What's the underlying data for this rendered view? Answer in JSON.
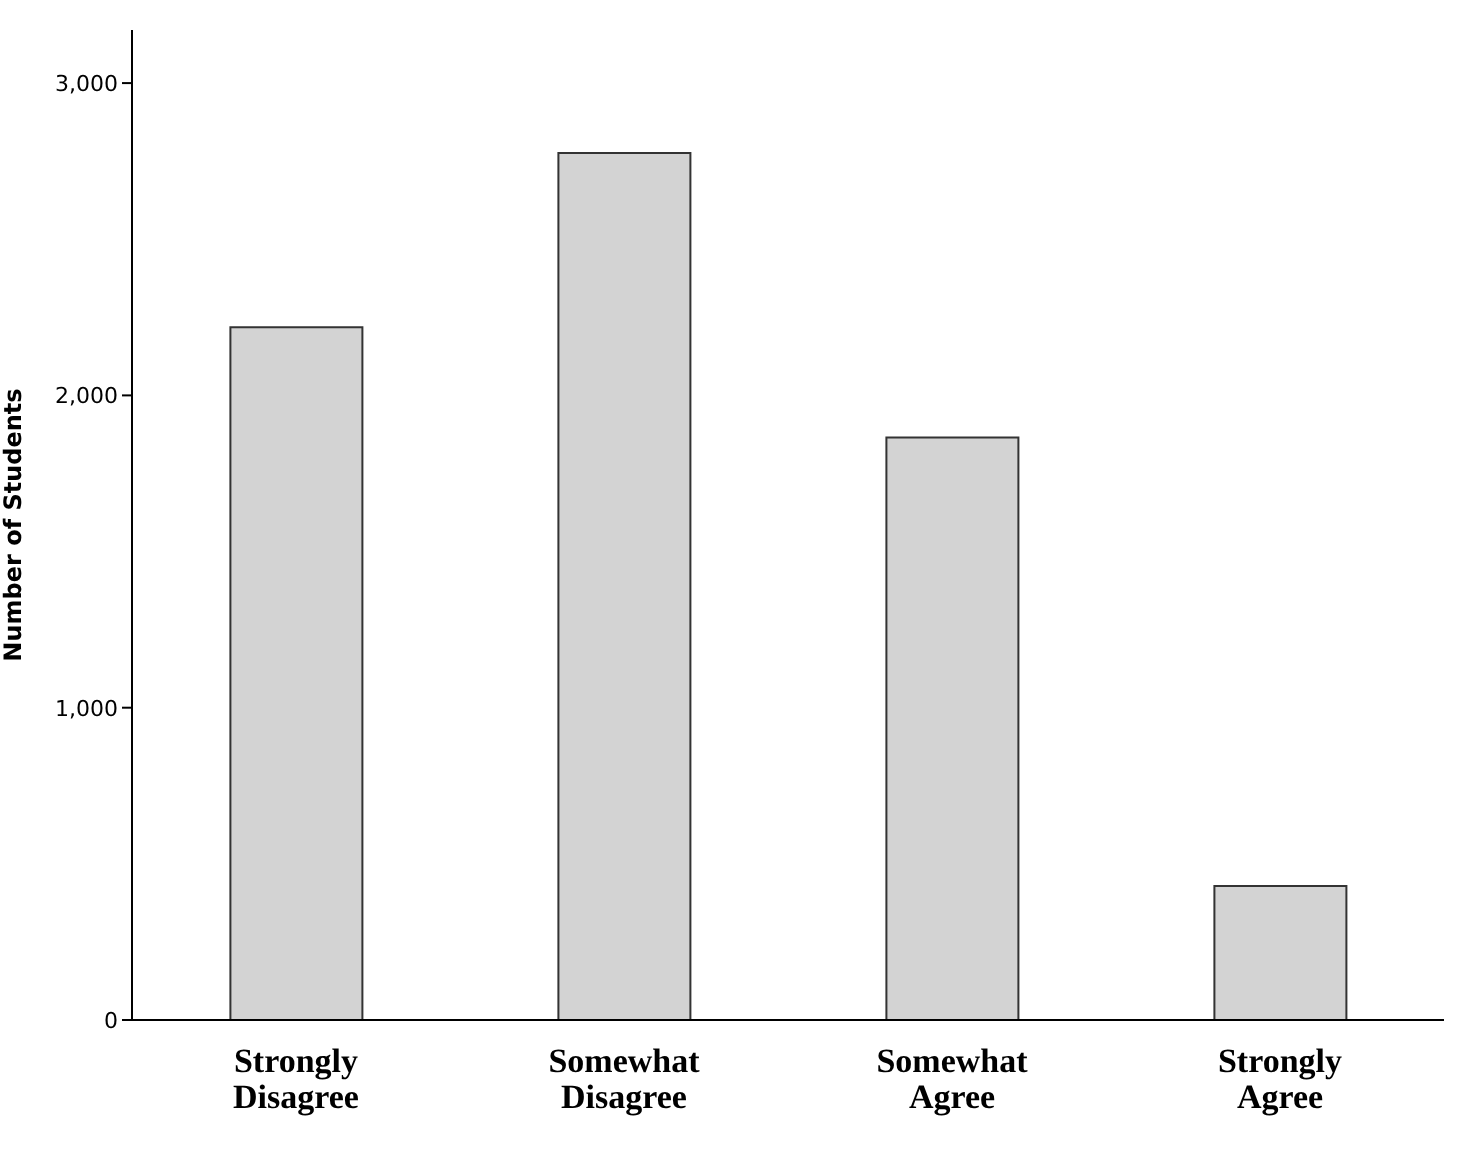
{
  "chart_data": {
    "type": "bar",
    "ylabel": "Number of Students",
    "categories": [
      "Strongly Disagree",
      "Somewhat Disagree",
      "Somewhat Agree",
      "Strongly Agree"
    ],
    "values": [
      2218,
      2776,
      1865,
      429
    ],
    "color": "#d3d3d3",
    "ylim": [
      0,
      3170
    ],
    "yticks": [
      {
        "value": 0,
        "label": "0"
      },
      {
        "value": 1000,
        "label": "1,000"
      },
      {
        "value": 2000,
        "label": "2,000"
      },
      {
        "value": 3000,
        "label": "3,000"
      }
    ],
    "grid": false
  }
}
